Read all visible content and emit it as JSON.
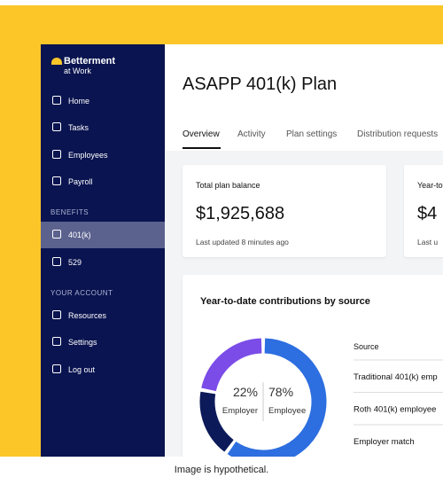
{
  "sidebar": {
    "brand": "Betterment",
    "brand_sub": "at Work",
    "nav": [
      "Home",
      "Tasks",
      "Employees",
      "Payroll"
    ],
    "benefits_heading": "BENEFITS",
    "benefits": [
      "401(k)",
      "529"
    ],
    "account_heading": "YOUR ACCOUNT",
    "account": [
      "Resources",
      "Settings",
      "Log out"
    ]
  },
  "header": {
    "title": "ASAPP 401(k) Plan",
    "tabs": [
      "Overview",
      "Activity",
      "Plan settings",
      "Distribution requests"
    ]
  },
  "cards": [
    {
      "label": "Total plan balance",
      "value": "$1,925,688",
      "note": "Last updated 8 minutes ago"
    },
    {
      "label": "Year-to",
      "value": "$4",
      "note": "Last u"
    }
  ],
  "contributions": {
    "title": "Year-to-date contributions by source",
    "chart_data": {
      "type": "donut",
      "series": [
        {
          "name": "Traditional 401(k) emp",
          "color": "#2d6ee0",
          "value": 60
        },
        {
          "name": "Roth 401(k) employee",
          "color": "#0c1a5a",
          "value": 18
        },
        {
          "name": "Employer match",
          "color": "#7b4ce8",
          "value": 22
        }
      ],
      "summary": [
        {
          "value": 22,
          "value_label": "22%",
          "label": "Employer"
        },
        {
          "value": 78,
          "value_label": "78%",
          "label": "Employee"
        }
      ]
    },
    "table_header": "Source"
  },
  "caption": "Image is hypothetical."
}
